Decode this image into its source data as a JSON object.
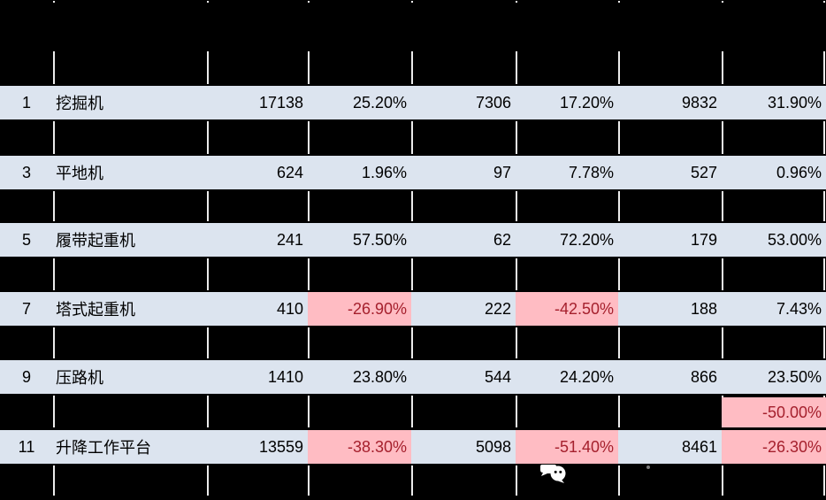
{
  "table": {
    "rows": [
      {
        "num": "1",
        "name": "挖掘机",
        "sales1": "17138",
        "yoy1": "25.20%",
        "sales2": "7306",
        "yoy2": "17.20%",
        "sales3": "9832",
        "yoy3": "31.90%"
      },
      {
        "num": "3",
        "name": "平地机",
        "sales1": "624",
        "yoy1": "1.96%",
        "sales2": "97",
        "yoy2": "7.78%",
        "sales3": "527",
        "yoy3": "0.96%"
      },
      {
        "num": "5",
        "name": "履带起重机",
        "sales1": "241",
        "yoy1": "57.50%",
        "sales2": "62",
        "yoy2": "72.20%",
        "sales3": "179",
        "yoy3": "53.00%"
      },
      {
        "num": "7",
        "name": "塔式起重机",
        "sales1": "410",
        "yoy1": "-26.90%",
        "sales2": "222",
        "yoy2": "-42.50%",
        "sales3": "188",
        "yoy3": "7.43%"
      },
      {
        "num": "9",
        "name": "压路机",
        "sales1": "1410",
        "yoy1": "23.80%",
        "sales2": "544",
        "yoy2": "24.20%",
        "sales3": "866",
        "yoy3": "23.50%"
      },
      {
        "num": "11",
        "name": "升降工作平台",
        "sales1": "13559",
        "yoy1": "-38.30%",
        "sales2": "5098",
        "yoy2": "-51.40%",
        "sales3": "8461",
        "yoy3": "-26.30%"
      }
    ],
    "hidden_row_visible_cell": {
      "value": "-50.00%"
    }
  },
  "icons": {
    "watermark": "wechat-icon"
  },
  "colors": {
    "page_background": "#000000",
    "row_background": "#dce4ef",
    "negative_background": "#ffbcc3",
    "negative_text": "#a5202d",
    "gridline": "#ececec",
    "text": "#000000"
  }
}
